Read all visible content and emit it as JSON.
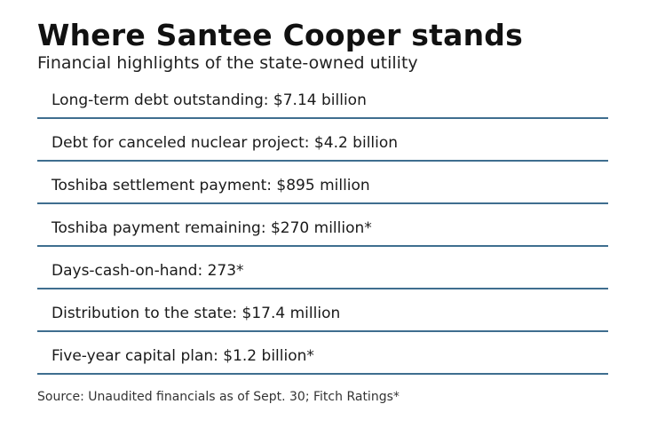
{
  "header": {
    "title": "Where Santee Cooper stands",
    "subtitle": "Financial highlights of the state-owned utility"
  },
  "rows": [
    "Long-term debt outstanding: $7.14 billion",
    "Debt for canceled nuclear project: $4.2 billion",
    "Toshiba settlement payment: $895 million",
    "Toshiba payment remaining: $270 million*",
    "Days-cash-on-hand: 273*",
    "Distribution to the state: $17.4 million",
    "Five-year capital plan: $1.2 billion*"
  ],
  "footer": {
    "source": "Source: Unaudited financials as of Sept. 30; Fitch Ratings*"
  },
  "colors": {
    "divider": "#3f6e8f",
    "text": "#1a1a1a"
  }
}
